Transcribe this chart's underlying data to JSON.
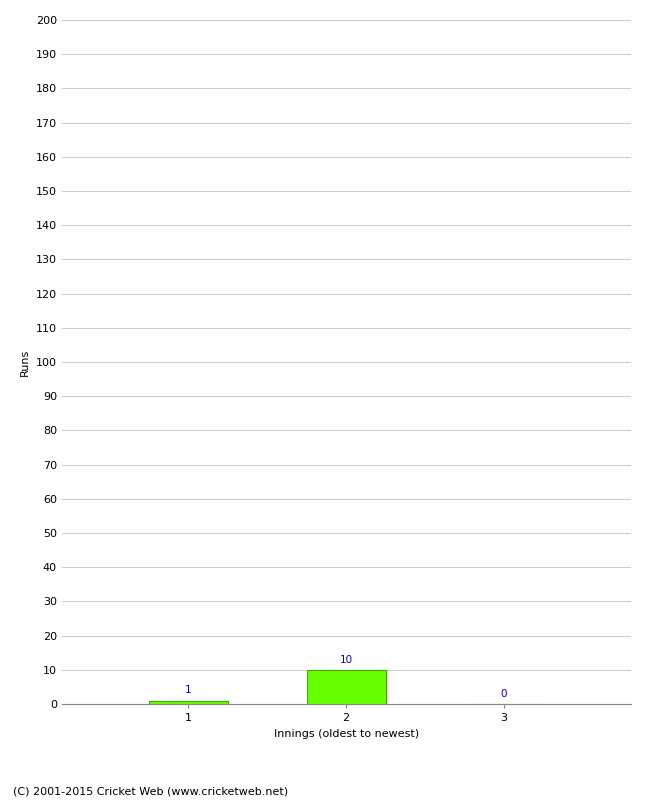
{
  "categories": [
    1,
    2,
    3
  ],
  "values": [
    1,
    10,
    0
  ],
  "bar_color": "#66ff00",
  "bar_edge_color": "#44aa00",
  "ylabel": "Runs",
  "xlabel": "Innings (oldest to newest)",
  "ylim": [
    0,
    200
  ],
  "yticks": [
    0,
    10,
    20,
    30,
    40,
    50,
    60,
    70,
    80,
    90,
    100,
    110,
    120,
    130,
    140,
    150,
    160,
    170,
    180,
    190,
    200
  ],
  "label_color": "#0000cc",
  "label_fontsize": 7.5,
  "axis_label_fontsize": 8,
  "tick_fontsize": 8,
  "footer_text": "(C) 2001-2015 Cricket Web (www.cricketweb.net)",
  "footer_fontsize": 8,
  "background_color": "#ffffff",
  "grid_color": "#cccccc",
  "bar_width": 0.5
}
